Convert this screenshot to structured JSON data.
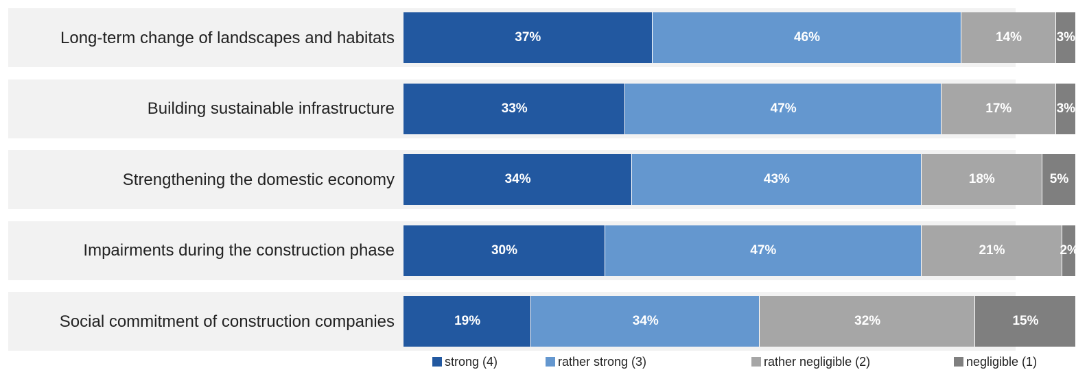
{
  "chart_data": {
    "type": "stacked-bar",
    "categories": [
      "Long-term change of landscapes and habitats",
      "Building sustainable infrastructure",
      "Strengthening the domestic economy",
      "Impairments during the construction phase",
      "Social commitment of construction companies"
    ],
    "series": [
      {
        "name": "strong (4)",
        "color": "#2258a0",
        "values": [
          37,
          33,
          34,
          30,
          19
        ],
        "value_labels": [
          "37%",
          "33%",
          "34%",
          "30%",
          "19%"
        ]
      },
      {
        "name": "rather strong (3)",
        "color": "#6497cf",
        "values": [
          46,
          47,
          43,
          47,
          34
        ],
        "value_labels": [
          "46%",
          "47%",
          "43%",
          "47%",
          "34%"
        ]
      },
      {
        "name": "rather negligible (2)",
        "color": "#a6a6a6",
        "values": [
          14,
          17,
          18,
          21,
          32
        ],
        "value_labels": [
          "14%",
          "17%",
          "18%",
          "21%",
          "32%"
        ]
      },
      {
        "name": "negligible (1)",
        "color": "#7f7f7f",
        "values": [
          3,
          3,
          5,
          2,
          15
        ],
        "value_labels": [
          "3%",
          "3%",
          "5%",
          "2%",
          "15%"
        ]
      }
    ],
    "xlim": [
      0,
      100
    ]
  }
}
